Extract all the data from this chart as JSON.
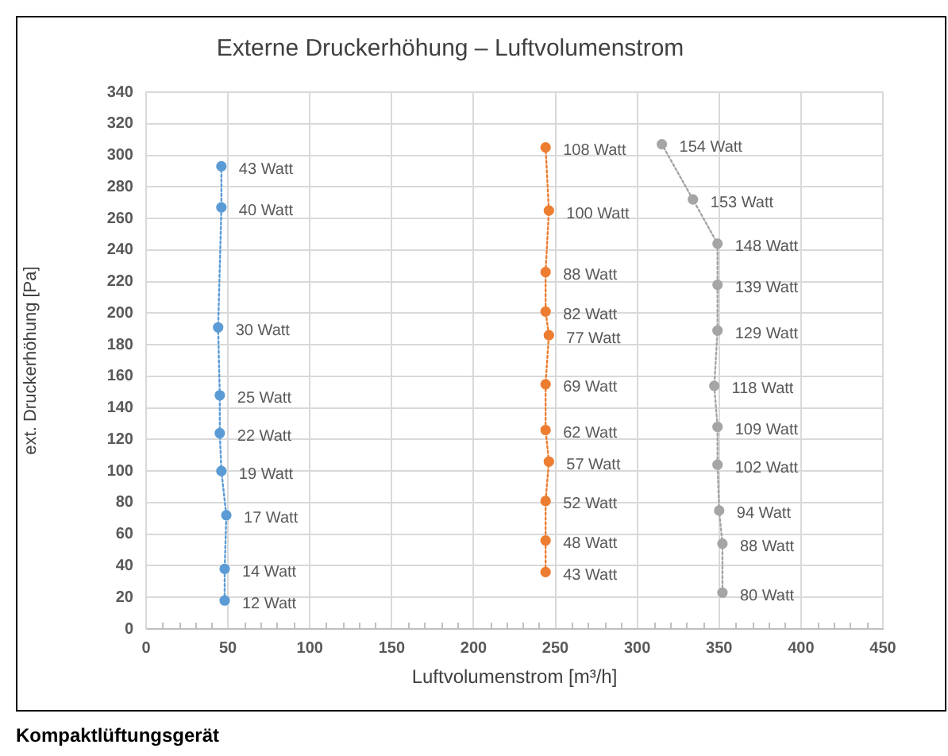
{
  "chart_data": {
    "type": "line",
    "title": "Externe Druckerhöhung – Luftvolumenstrom",
    "xlabel": "Luftvolumenstrom [m³/h]",
    "ylabel": "ext. Druckerhöhung [Pa]",
    "annotations": [
      "Kompaktlüftungsgerät",
      {
        "text": "12 Watt",
        "x": 48,
        "y": 18
      },
      {
        "text": "14 Watt",
        "x": 48,
        "y": 38
      },
      {
        "text": "17 Watt",
        "x": 49,
        "y": 72
      },
      {
        "text": "19 Watt",
        "x": 46,
        "y": 100
      },
      {
        "text": "22 Watt",
        "x": 45,
        "y": 124
      },
      {
        "text": "25 Watt",
        "x": 45,
        "y": 148
      },
      {
        "text": "30 Watt",
        "x": 44,
        "y": 191
      },
      {
        "text": "40 Watt",
        "x": 46,
        "y": 267
      },
      {
        "text": "43 Watt",
        "x": 46,
        "y": 293
      },
      {
        "text": "43 Watt",
        "x": 244,
        "y": 36
      },
      {
        "text": "48 Watt",
        "x": 244,
        "y": 56
      },
      {
        "text": "52 Watt",
        "x": 244,
        "y": 81
      },
      {
        "text": "57 Watt",
        "x": 246,
        "y": 106
      },
      {
        "text": "62 Watt",
        "x": 244,
        "y": 126
      },
      {
        "text": "69 Watt",
        "x": 244,
        "y": 155
      },
      {
        "text": "77 Watt",
        "x": 246,
        "y": 186
      },
      {
        "text": "82 Watt",
        "x": 244,
        "y": 201
      },
      {
        "text": "88 Watt",
        "x": 244,
        "y": 226
      },
      {
        "text": "100 Watt",
        "x": 246,
        "y": 265
      },
      {
        "text": "108 Watt",
        "x": 244,
        "y": 305
      },
      {
        "text": "80 Watt",
        "x": 352,
        "y": 23
      },
      {
        "text": "88 Watt",
        "x": 352,
        "y": 54
      },
      {
        "text": "94 Watt",
        "x": 350,
        "y": 75
      },
      {
        "text": "102 Watt",
        "x": 349,
        "y": 104
      },
      {
        "text": "109 Watt",
        "x": 349,
        "y": 128
      },
      {
        "text": "118 Watt",
        "x": 347,
        "y": 154
      },
      {
        "text": "129 Watt",
        "x": 349,
        "y": 189
      },
      {
        "text": "139 Watt",
        "x": 349,
        "y": 218
      },
      {
        "text": "148 Watt",
        "x": 349,
        "y": 244
      },
      {
        "text": "153 Watt",
        "x": 334,
        "y": 272
      },
      {
        "text": "154 Watt",
        "x": 315,
        "y": 307
      }
    ],
    "xlim": [
      0,
      450
    ],
    "xticks": [
      0,
      {
        "value": 10,
        "label": null
      },
      {
        "value": 20,
        "label": null
      },
      {
        "value": 30,
        "label": null
      },
      {
        "value": 40,
        "label": null
      },
      50,
      {
        "value": 60,
        "label": null
      },
      {
        "value": 70,
        "label": null
      },
      {
        "value": 80,
        "label": null
      },
      {
        "value": 90,
        "label": null
      },
      100,
      {
        "value": 110,
        "label": null
      },
      {
        "value": 120,
        "label": null
      },
      {
        "value": 130,
        "label": null
      },
      {
        "value": 140,
        "label": null
      },
      150,
      {
        "value": 160,
        "label": null
      },
      {
        "value": 170,
        "label": null
      },
      {
        "value": 180,
        "label": null
      },
      {
        "value": 190,
        "label": null
      },
      200,
      {
        "value": 210,
        "label": null
      },
      {
        "value": 220,
        "label": null
      },
      {
        "value": 230,
        "label": null
      },
      {
        "value": 240,
        "label": null
      },
      250,
      {
        "value": 260,
        "label": null
      },
      {
        "value": 270,
        "label": null
      },
      {
        "value": 280,
        "label": null
      },
      {
        "value": 290,
        "label": null
      },
      300,
      {
        "value": 310,
        "label": null
      },
      {
        "value": 320,
        "label": null
      },
      {
        "value": 330,
        "label": null
      },
      {
        "value": 340,
        "label": null
      },
      350,
      {
        "value": 360,
        "label": null
      },
      {
        "value": 370,
        "label": null
      },
      {
        "value": 380,
        "label": null
      },
      {
        "value": 390,
        "label": null
      },
      400,
      {
        "value": 410,
        "label": null
      },
      {
        "value": 420,
        "label": null
      },
      {
        "value": 430,
        "label": null
      },
      {
        "value": 440,
        "label": null
      },
      450
    ],
    "ylim": [
      0,
      340
    ],
    "yticks": [
      0,
      20,
      40,
      60,
      80,
      100,
      120,
      140,
      160,
      180,
      200,
      220,
      240,
      260,
      280,
      300,
      320,
      340
    ],
    "grid": true,
    "marker": "circle",
    "line_style": "dotted",
    "series": [
      {
        "color": "#5b9bd5",
        "x": [
          48,
          48,
          49,
          46,
          45,
          45,
          44,
          46,
          46
        ],
        "values": [
          18,
          38,
          72,
          100,
          124,
          148,
          191,
          267,
          293
        ]
      },
      {
        "color": "#ed7d31",
        "x": [
          244,
          244,
          244,
          246,
          244,
          244,
          246,
          244,
          244,
          246,
          244
        ],
        "values": [
          36,
          56,
          81,
          106,
          126,
          155,
          186,
          201,
          226,
          265,
          305
        ]
      },
      {
        "color": "#a5a5a5",
        "x": [
          352,
          352,
          350,
          349,
          349,
          347,
          349,
          349,
          349,
          334,
          315
        ],
        "values": [
          23,
          54,
          75,
          104,
          128,
          154,
          189,
          218,
          244,
          272,
          307
        ]
      }
    ]
  }
}
